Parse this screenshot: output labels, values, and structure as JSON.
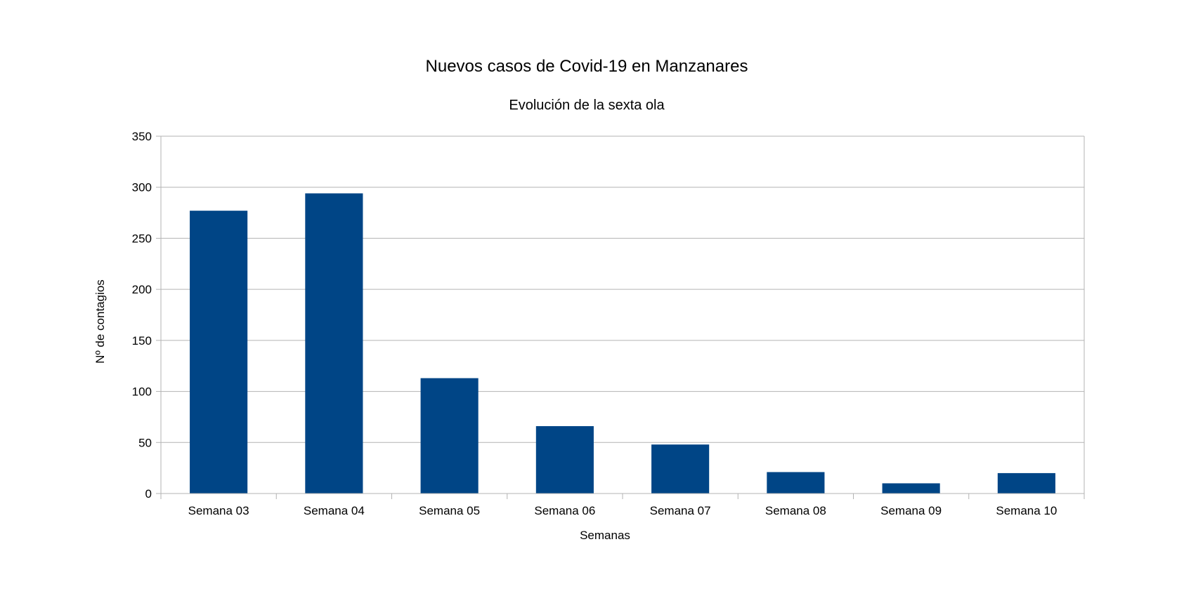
{
  "chart_data": {
    "type": "bar",
    "title": "Nuevos casos de Covid-19 en Manzanares",
    "subtitle": "Evolución de la sexta ola",
    "xlabel": "Semanas",
    "ylabel": "Nº de contagios",
    "categories": [
      "Semana 03",
      "Semana 04",
      "Semana 05",
      "Semana 06",
      "Semana 07",
      "Semana 08",
      "Semana 09",
      "Semana 10"
    ],
    "values": [
      277,
      294,
      113,
      66,
      48,
      21,
      10,
      20
    ],
    "ylim": [
      0,
      350
    ],
    "yticks": [
      0,
      50,
      100,
      150,
      200,
      250,
      300,
      350
    ],
    "ytick_labels": [
      "0",
      "50",
      "100",
      "150",
      "200",
      "250",
      "300",
      "350"
    ],
    "grid": true,
    "legend": "none",
    "bar_color": "#004586",
    "grid_color": "#b3b3b3"
  }
}
